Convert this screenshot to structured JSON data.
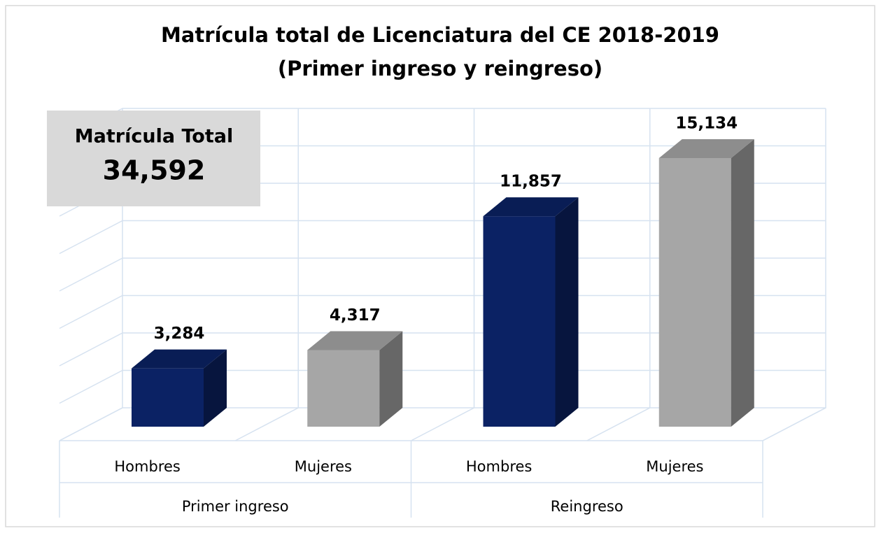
{
  "chart_data": {
    "type": "bar3d",
    "title": "Matrícula total de Licenciatura del CE 2018-2019",
    "subtitle": "(Primer ingreso y reingreso)",
    "categories": [
      "Hombres",
      "Mujeres",
      "Hombres",
      "Mujeres"
    ],
    "groups": [
      "Primer ingreso",
      "Reingreso"
    ],
    "values": [
      3284,
      4317,
      11857,
      15134
    ],
    "value_labels": [
      "3,284",
      "4,317",
      "11,857",
      "15,134"
    ],
    "colors": [
      "#0b2264",
      "#a6a6a6",
      "#0b2264",
      "#a6a6a6"
    ],
    "ylim": [
      0,
      16000
    ],
    "yticks": [
      0,
      2000,
      4000,
      6000,
      8000,
      10000,
      12000,
      14000,
      16000
    ],
    "grid": true,
    "annotation": {
      "title": "Matrícula Total",
      "value": "34,592"
    }
  }
}
